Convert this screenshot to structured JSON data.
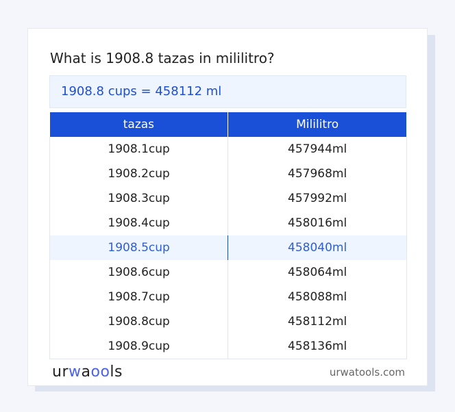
{
  "title": "What is 1908.8 tazas in mililitro?",
  "result": "1908.8 cups = 458112 ml",
  "table": {
    "headers": [
      "tazas",
      "Mililitro"
    ],
    "rows": [
      [
        "1908.1cup",
        "457944ml"
      ],
      [
        "1908.2cup",
        "457968ml"
      ],
      [
        "1908.3cup",
        "457992ml"
      ],
      [
        "1908.4cup",
        "458016ml"
      ],
      [
        "1908.5cup",
        "458040ml"
      ],
      [
        "1908.6cup",
        "458064ml"
      ],
      [
        "1908.7cup",
        "458088ml"
      ],
      [
        "1908.8cup",
        "458112ml"
      ],
      [
        "1908.9cup",
        "458136ml"
      ]
    ],
    "highlighted_row": 4
  },
  "footer": {
    "logo": "urwatools",
    "site": "urwatools.com"
  },
  "colors": {
    "accent": "#1a4fd8",
    "highlight_bg": "#eef5ff"
  }
}
